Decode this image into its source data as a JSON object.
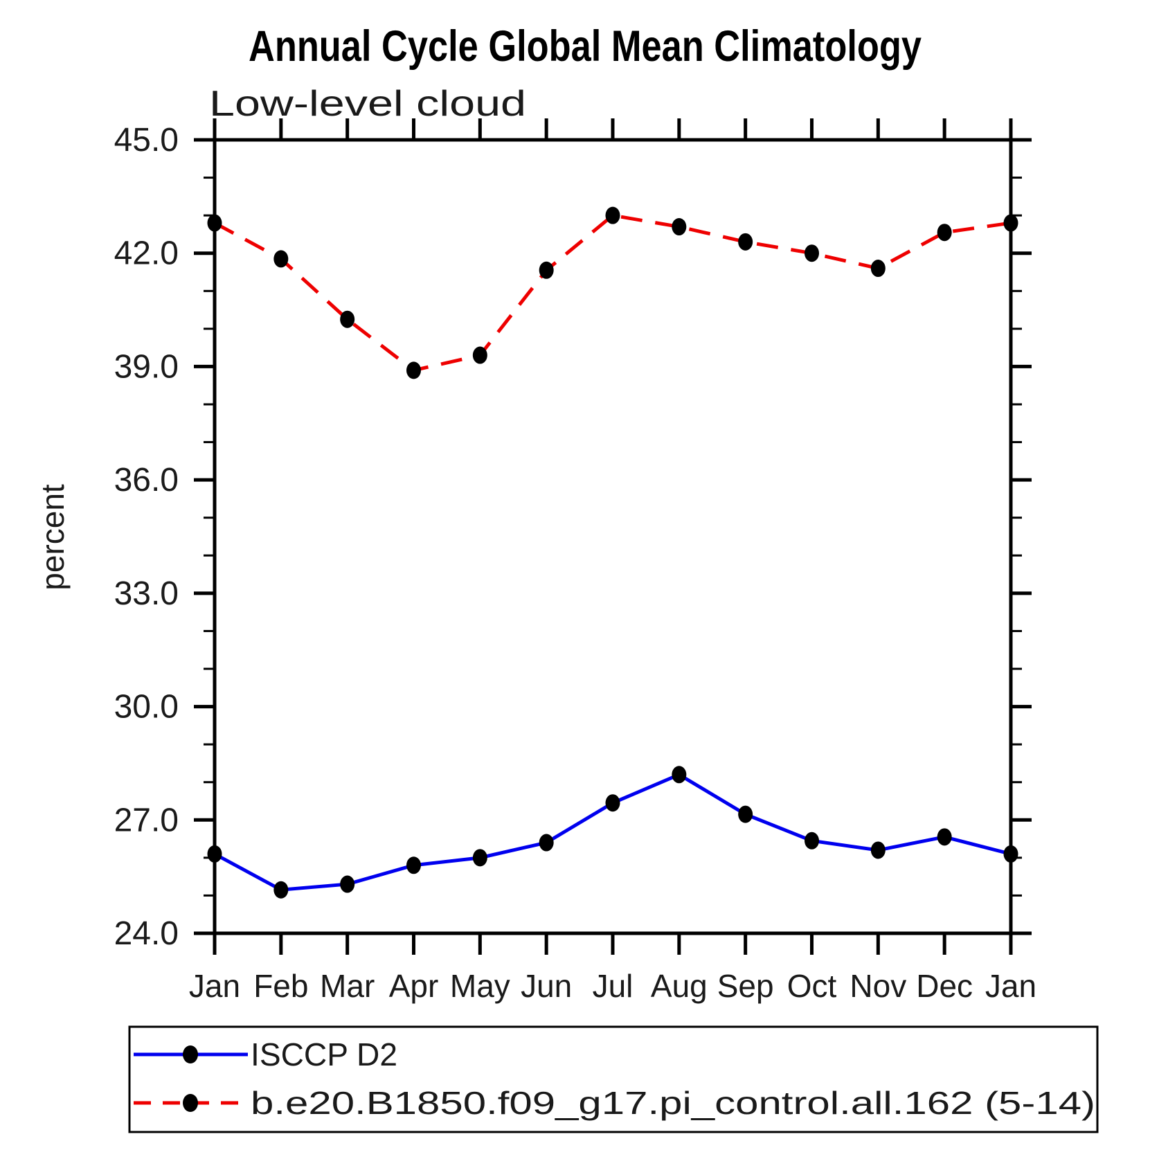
{
  "header": {
    "title": "Annual Cycle Global Mean Climatology",
    "subtitle": "Low-level cloud"
  },
  "chart_data": {
    "type": "line",
    "title": "Annual Cycle Global Mean Climatology",
    "subtitle": "Low-level cloud",
    "xlabel": "",
    "ylabel": "percent",
    "categories": [
      "Jan",
      "Feb",
      "Mar",
      "Apr",
      "May",
      "Jun",
      "Jul",
      "Aug",
      "Sep",
      "Oct",
      "Nov",
      "Dec",
      "Jan"
    ],
    "ylim": [
      24.0,
      45.0
    ],
    "ytick_major_step": 3.0,
    "ytick_minor_step": 1.0,
    "ytick_labels": [
      "24.0",
      "27.0",
      "30.0",
      "33.0",
      "36.0",
      "39.0",
      "42.0",
      "45.0"
    ],
    "grid": false,
    "legend_position": "bottom-left-box",
    "series": [
      {
        "name": "ISCCP D2",
        "color": "#0000EE",
        "line_style": "solid",
        "marker": "filled-circle",
        "marker_color": "#000000",
        "values": [
          26.1,
          25.15,
          25.3,
          25.8,
          26.0,
          26.4,
          27.45,
          28.2,
          27.15,
          26.45,
          26.2,
          26.55,
          26.1
        ]
      },
      {
        "name": "b.e20.B1850.f09_g17.pi_control.all.162 (5-14)",
        "color": "#EE0000",
        "line_style": "dashed",
        "marker": "filled-circle",
        "marker_color": "#000000",
        "values": [
          42.8,
          41.85,
          40.25,
          38.9,
          39.3,
          41.55,
          43.0,
          42.7,
          42.3,
          42.0,
          41.6,
          42.55,
          42.8
        ]
      }
    ]
  }
}
